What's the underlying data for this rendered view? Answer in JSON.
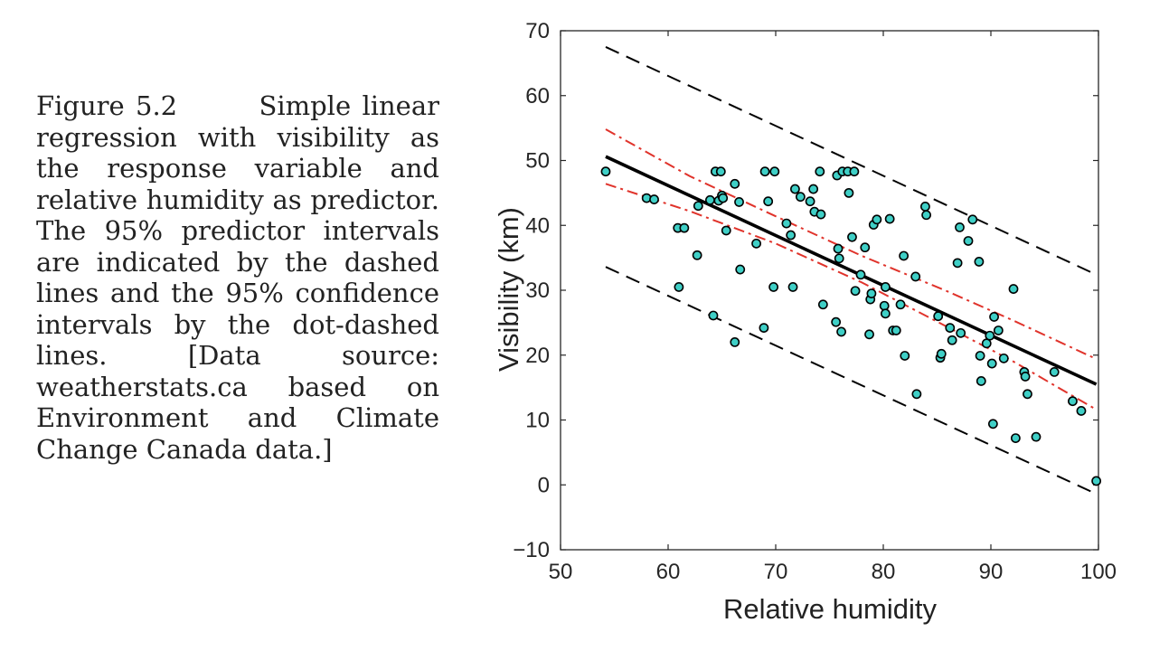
{
  "caption": {
    "figure_number": "Figure 5.2",
    "text": "Simple linear regression with visibility as the response variable and relative humidity as predictor. The 95% predictor intervals are indicated by the dashed lines and the 95% confidence intervals by the dot-dashed lines. [Data source: weatherstats.ca based on Environment and Climate Change Canada data.]"
  },
  "colors": {
    "regression": "#000000",
    "prediction_interval": "#000000",
    "confidence_interval": "#e0332b",
    "marker_fill": "#3fcfc6",
    "marker_edge": "#000000"
  },
  "chart_data": {
    "type": "scatter",
    "xlabel": "Relative humidity",
    "ylabel": "Visibility (km)",
    "xlim": [
      50,
      100
    ],
    "ylim": [
      -10,
      70
    ],
    "xticks": [
      50,
      60,
      70,
      80,
      90,
      100
    ],
    "yticks": [
      -10,
      0,
      10,
      20,
      30,
      40,
      50,
      60,
      70
    ],
    "xtick_labels": [
      "50",
      "60",
      "70",
      "80",
      "90",
      "100"
    ],
    "ytick_labels": [
      "−10",
      "0",
      "10",
      "20",
      "30",
      "40",
      "50",
      "60",
      "70"
    ],
    "grid": false,
    "points": [
      [
        54.2,
        48.3
      ],
      [
        58,
        44.2
      ],
      [
        58.7,
        44
      ],
      [
        60.9,
        39.6
      ],
      [
        61,
        30.5
      ],
      [
        61.5,
        39.6
      ],
      [
        62.7,
        35.4
      ],
      [
        62.8,
        43
      ],
      [
        63.9,
        43.9
      ],
      [
        64.2,
        26.1
      ],
      [
        64.4,
        48.3
      ],
      [
        64.7,
        43.8
      ],
      [
        64.9,
        48.3
      ],
      [
        65,
        44.6
      ],
      [
        65.1,
        44.2
      ],
      [
        65.4,
        39.2
      ],
      [
        66.2,
        46.4
      ],
      [
        66.2,
        22
      ],
      [
        66.6,
        43.6
      ],
      [
        66.7,
        33.2
      ],
      [
        68.2,
        37.2
      ],
      [
        68.9,
        24.2
      ],
      [
        69,
        48.3
      ],
      [
        69.3,
        43.7
      ],
      [
        69.9,
        48.3
      ],
      [
        69.8,
        30.5
      ],
      [
        71,
        40.3
      ],
      [
        71.4,
        38.5
      ],
      [
        71.6,
        30.5
      ],
      [
        71.8,
        45.6
      ],
      [
        72.3,
        44.4
      ],
      [
        73.2,
        43.7
      ],
      [
        73.5,
        45.6
      ],
      [
        73.6,
        42.1
      ],
      [
        74.1,
        48.3
      ],
      [
        74.2,
        41.7
      ],
      [
        74.4,
        27.8
      ],
      [
        75.6,
        25.1
      ],
      [
        75.7,
        47.7
      ],
      [
        75.8,
        36.4
      ],
      [
        75.9,
        34.9
      ],
      [
        76.1,
        23.6
      ],
      [
        76.2,
        48.3
      ],
      [
        76.7,
        48.3
      ],
      [
        76.8,
        45
      ],
      [
        77.3,
        48.3
      ],
      [
        77.1,
        38.2
      ],
      [
        77.4,
        29.9
      ],
      [
        77.9,
        32.4
      ],
      [
        78.3,
        36.6
      ],
      [
        78.7,
        23.2
      ],
      [
        78.8,
        28.6
      ],
      [
        78.9,
        29.5
      ],
      [
        79.1,
        40.1
      ],
      [
        79.4,
        40.9
      ],
      [
        80.1,
        27.6
      ],
      [
        80.2,
        30.5
      ],
      [
        80.2,
        26.4
      ],
      [
        80.6,
        41
      ],
      [
        80.9,
        23.8
      ],
      [
        81.2,
        23.8
      ],
      [
        81.6,
        27.8
      ],
      [
        81.9,
        35.3
      ],
      [
        82,
        19.9
      ],
      [
        83,
        32.1
      ],
      [
        83.1,
        14
      ],
      [
        83.9,
        42.9
      ],
      [
        84,
        41.6
      ],
      [
        85.1,
        26
      ],
      [
        85.3,
        19.6
      ],
      [
        85.4,
        20.2
      ],
      [
        86.2,
        24.2
      ],
      [
        86.4,
        22.3
      ],
      [
        86.9,
        34.2
      ],
      [
        87.1,
        39.7
      ],
      [
        87.2,
        23.4
      ],
      [
        87.9,
        37.6
      ],
      [
        88.3,
        40.9
      ],
      [
        88.9,
        34.4
      ],
      [
        89,
        19.9
      ],
      [
        89.1,
        16
      ],
      [
        89.6,
        21.8
      ],
      [
        89.9,
        23
      ],
      [
        90.1,
        18.7
      ],
      [
        90.2,
        9.4
      ],
      [
        90.3,
        25.9
      ],
      [
        90.7,
        23.8
      ],
      [
        91.2,
        19.5
      ],
      [
        92.1,
        30.2
      ],
      [
        92.3,
        7.2
      ],
      [
        93.1,
        17.4
      ],
      [
        93.2,
        16.7
      ],
      [
        93.4,
        14
      ],
      [
        94.2,
        7.4
      ],
      [
        95.9,
        17.4
      ],
      [
        97.6,
        12.9
      ],
      [
        98.4,
        11.4
      ],
      [
        99.8,
        0.6
      ]
    ],
    "fit_line": {
      "x": [
        54.2,
        99.8
      ],
      "y": [
        50.6,
        15.5
      ]
    },
    "prediction_interval": {
      "upper": {
        "x": [
          54.2,
          99.8
        ],
        "y": [
          67.5,
          32.4
        ]
      },
      "lower": {
        "x": [
          54.2,
          99.8
        ],
        "y": [
          33.6,
          -1.4
        ]
      }
    },
    "confidence_interval": {
      "upper": {
        "x": [
          54.2,
          62,
          70,
          78,
          86,
          92,
          99.8
        ],
        "y": [
          54.8,
          47.6,
          41.4,
          35.3,
          29.8,
          25.4,
          19.4
        ]
      },
      "lower": {
        "x": [
          54.2,
          62,
          70,
          78,
          86,
          92,
          99.8
        ],
        "y": [
          46.4,
          42.2,
          37.2,
          31.2,
          24.3,
          19.1,
          11.6
        ]
      }
    }
  }
}
